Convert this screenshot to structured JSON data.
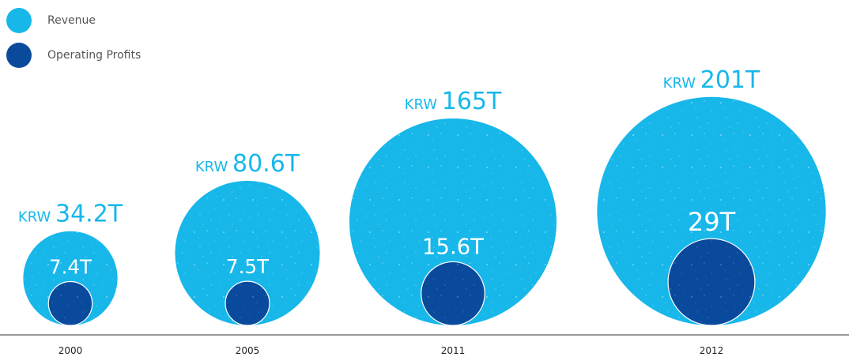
{
  "colors": {
    "revenue": "#17b7ea",
    "operating_profits": "#0a4a9c",
    "axis": "#333333",
    "tick_text": "#222222"
  },
  "legend": {
    "items": [
      {
        "label": "Revenue",
        "color": "#17b7ea"
      },
      {
        "label": "Operating Profits",
        "color": "#0a4a9c"
      }
    ]
  },
  "chart_data": {
    "type": "bubble",
    "categories": [
      "2000",
      "2005",
      "2011",
      "2012"
    ],
    "series": [
      {
        "name": "Revenue",
        "values": [
          34.2,
          80.6,
          165,
          201
        ],
        "labels": [
          "34.2T",
          "80.6T",
          "165T",
          "201T"
        ],
        "label_prefix": "KRW"
      },
      {
        "name": "Operating Profits",
        "values": [
          7.4,
          7.5,
          15.6,
          29
        ],
        "labels": [
          "7.4T",
          "7.5T",
          "15.6T",
          "29T"
        ]
      }
    ],
    "unit": "KRW trillion",
    "legend_position": "top-left",
    "grid": false
  }
}
